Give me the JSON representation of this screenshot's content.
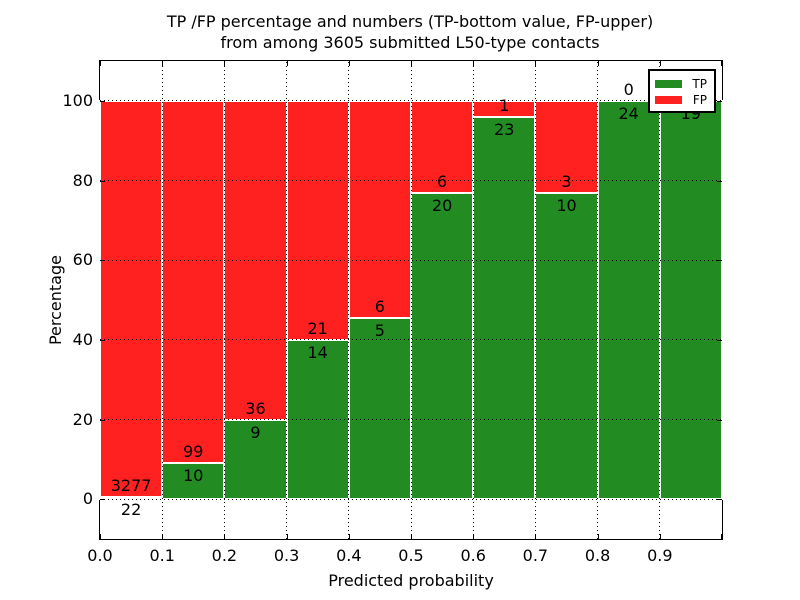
{
  "title": {
    "line1": "TP /FP percentage and numbers (TP-bottom value, FP-upper)",
    "line2": "from among 3605 submitted L50-type contacts"
  },
  "axes": {
    "xlabel": "Predicted probability",
    "ylabel": "Percentage",
    "x_tick_labels": [
      "0.0",
      "0.1",
      "0.2",
      "0.3",
      "0.4",
      "0.5",
      "0.6",
      "0.7",
      "0.8",
      "0.9"
    ],
    "y_tick_values": [
      0,
      20,
      40,
      60,
      80,
      100
    ],
    "ylim": [
      -10,
      110
    ],
    "xlim": [
      0.0,
      1.0
    ],
    "grid": "dotted"
  },
  "legend": {
    "position": "upper-right",
    "items": [
      {
        "label": "TP",
        "color": "#228B22"
      },
      {
        "label": "FP",
        "color": "#FF2020"
      }
    ]
  },
  "colors": {
    "tp": "#228B22",
    "fp": "#FF2020",
    "bar_edge": "#ffffff",
    "grid": "#000000",
    "background": "#ffffff"
  },
  "chart_data": {
    "type": "bar",
    "stacked": true,
    "normalized_to_percent": true,
    "title": "TP /FP percentage and numbers (TP-bottom value, FP-upper) from among 3605 submitted L50-type contacts",
    "xlabel": "Predicted probability",
    "ylabel": "Percentage",
    "total_contacts": 3605,
    "bin_width": 0.1,
    "bin_edges": [
      0.0,
      0.1,
      0.2,
      0.3,
      0.4,
      0.5,
      0.6,
      0.7,
      0.8,
      0.9,
      1.0
    ],
    "categories": [
      "0.0-0.1",
      "0.1-0.2",
      "0.2-0.3",
      "0.3-0.4",
      "0.4-0.5",
      "0.5-0.6",
      "0.6-0.7",
      "0.7-0.8",
      "0.8-0.9",
      "0.9-1.0"
    ],
    "series": [
      {
        "name": "TP",
        "color": "#228B22",
        "counts": [
          22,
          10,
          9,
          14,
          5,
          20,
          23,
          10,
          24,
          19
        ]
      },
      {
        "name": "FP",
        "color": "#FF2020",
        "counts": [
          3277,
          99,
          36,
          21,
          6,
          6,
          1,
          3,
          0,
          0
        ]
      }
    ],
    "tp_percent_of_bin": [
      0.67,
      9.17,
      20.0,
      40.0,
      45.45,
      76.92,
      95.83,
      76.92,
      100.0,
      100.0
    ],
    "fp_label_hidden_by_legend_for_last_bin": true,
    "ylim": [
      -10,
      110
    ],
    "legend_position": "upper-right"
  }
}
